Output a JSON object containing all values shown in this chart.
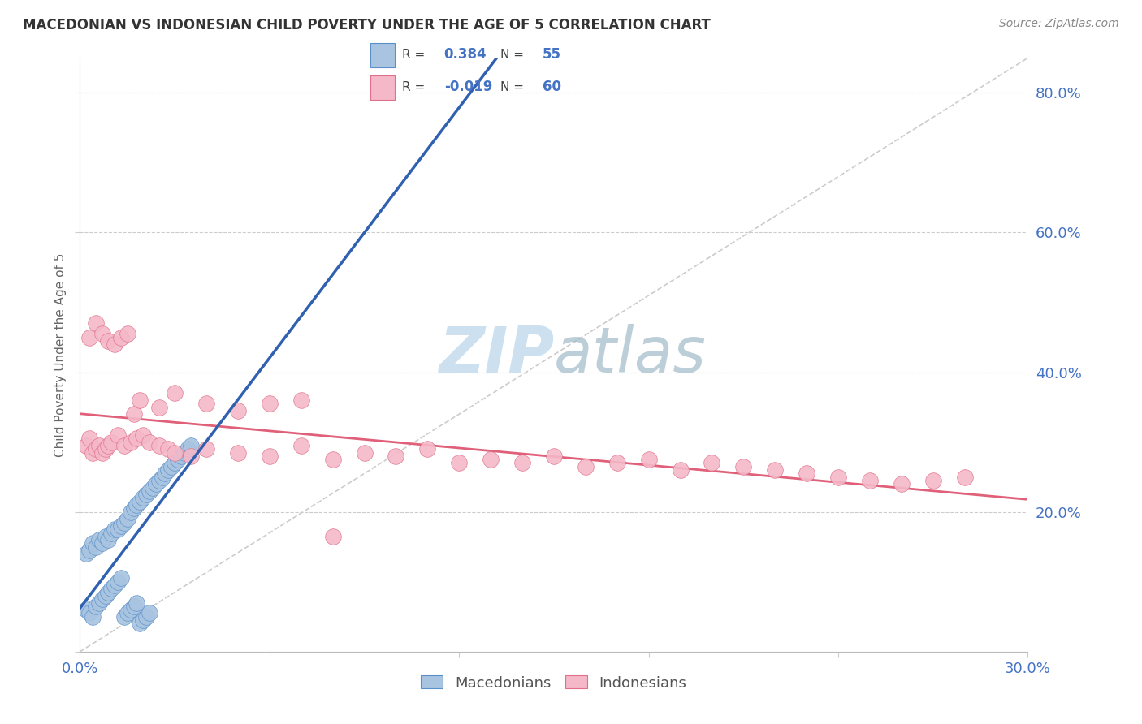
{
  "title": "MACEDONIAN VS INDONESIAN CHILD POVERTY UNDER THE AGE OF 5 CORRELATION CHART",
  "source": "Source: ZipAtlas.com",
  "ylabel": "Child Poverty Under the Age of 5",
  "xlim": [
    0.0,
    0.3
  ],
  "ylim": [
    0.0,
    0.85
  ],
  "blue_color": "#a8c4e0",
  "blue_edge_color": "#5b8fc9",
  "blue_line_color": "#3060b0",
  "pink_color": "#f4b8c8",
  "pink_edge_color": "#e0708a",
  "pink_line_color": "#e0607a",
  "grid_color": "#cccccc",
  "axis_label_color": "#4472c4",
  "title_color": "#333333",
  "source_color": "#888888",
  "watermark_color": "#cce0f0",
  "legend_label_blue": "Macedonians",
  "legend_label_pink": "Indonesians",
  "blue_R": "0.384",
  "blue_N": "55",
  "pink_R": "-0.019",
  "pink_N": "60",
  "blue_scatter_x": [
    0.002,
    0.003,
    0.004,
    0.005,
    0.006,
    0.007,
    0.008,
    0.009,
    0.01,
    0.011,
    0.012,
    0.013,
    0.014,
    0.015,
    0.016,
    0.017,
    0.018,
    0.019,
    0.02,
    0.021,
    0.022,
    0.023,
    0.024,
    0.025,
    0.026,
    0.027,
    0.028,
    0.029,
    0.03,
    0.031,
    0.032,
    0.033,
    0.034,
    0.035,
    0.002,
    0.003,
    0.004,
    0.005,
    0.006,
    0.007,
    0.008,
    0.009,
    0.01,
    0.011,
    0.012,
    0.013,
    0.014,
    0.015,
    0.016,
    0.017,
    0.018,
    0.019,
    0.02,
    0.021,
    0.022
  ],
  "blue_scatter_y": [
    0.14,
    0.145,
    0.155,
    0.15,
    0.16,
    0.155,
    0.165,
    0.16,
    0.17,
    0.175,
    0.175,
    0.18,
    0.185,
    0.19,
    0.2,
    0.205,
    0.21,
    0.215,
    0.22,
    0.225,
    0.23,
    0.235,
    0.24,
    0.245,
    0.25,
    0.255,
    0.26,
    0.265,
    0.27,
    0.275,
    0.28,
    0.285,
    0.29,
    0.295,
    0.06,
    0.055,
    0.05,
    0.065,
    0.07,
    0.075,
    0.08,
    0.085,
    0.09,
    0.095,
    0.1,
    0.105,
    0.05,
    0.055,
    0.06,
    0.065,
    0.07,
    0.04,
    0.045,
    0.05,
    0.055
  ],
  "pink_scatter_x": [
    0.002,
    0.003,
    0.004,
    0.005,
    0.006,
    0.007,
    0.008,
    0.009,
    0.01,
    0.012,
    0.014,
    0.016,
    0.018,
    0.02,
    0.022,
    0.025,
    0.028,
    0.03,
    0.035,
    0.04,
    0.05,
    0.06,
    0.07,
    0.08,
    0.09,
    0.1,
    0.11,
    0.12,
    0.13,
    0.14,
    0.15,
    0.16,
    0.17,
    0.18,
    0.19,
    0.2,
    0.21,
    0.22,
    0.23,
    0.24,
    0.25,
    0.26,
    0.27,
    0.28,
    0.003,
    0.005,
    0.007,
    0.009,
    0.011,
    0.013,
    0.015,
    0.017,
    0.019,
    0.025,
    0.03,
    0.04,
    0.05,
    0.06,
    0.07,
    0.08
  ],
  "pink_scatter_y": [
    0.295,
    0.305,
    0.285,
    0.29,
    0.295,
    0.285,
    0.29,
    0.295,
    0.3,
    0.31,
    0.295,
    0.3,
    0.305,
    0.31,
    0.3,
    0.295,
    0.29,
    0.285,
    0.28,
    0.29,
    0.285,
    0.28,
    0.295,
    0.275,
    0.285,
    0.28,
    0.29,
    0.27,
    0.275,
    0.27,
    0.28,
    0.265,
    0.27,
    0.275,
    0.26,
    0.27,
    0.265,
    0.26,
    0.255,
    0.25,
    0.245,
    0.24,
    0.245,
    0.25,
    0.45,
    0.47,
    0.455,
    0.445,
    0.44,
    0.45,
    0.455,
    0.34,
    0.36,
    0.35,
    0.37,
    0.355,
    0.345,
    0.355,
    0.36,
    0.165
  ],
  "xticks": [
    0.0,
    0.06,
    0.12,
    0.18,
    0.24,
    0.3
  ],
  "xticklabels": [
    "0.0%",
    "",
    "",
    "",
    "",
    "30.0%"
  ],
  "yticks": [
    0.0,
    0.2,
    0.4,
    0.6,
    0.8
  ],
  "yticklabels_right": [
    "",
    "20.0%",
    "40.0%",
    "60.0%",
    "80.0%"
  ]
}
